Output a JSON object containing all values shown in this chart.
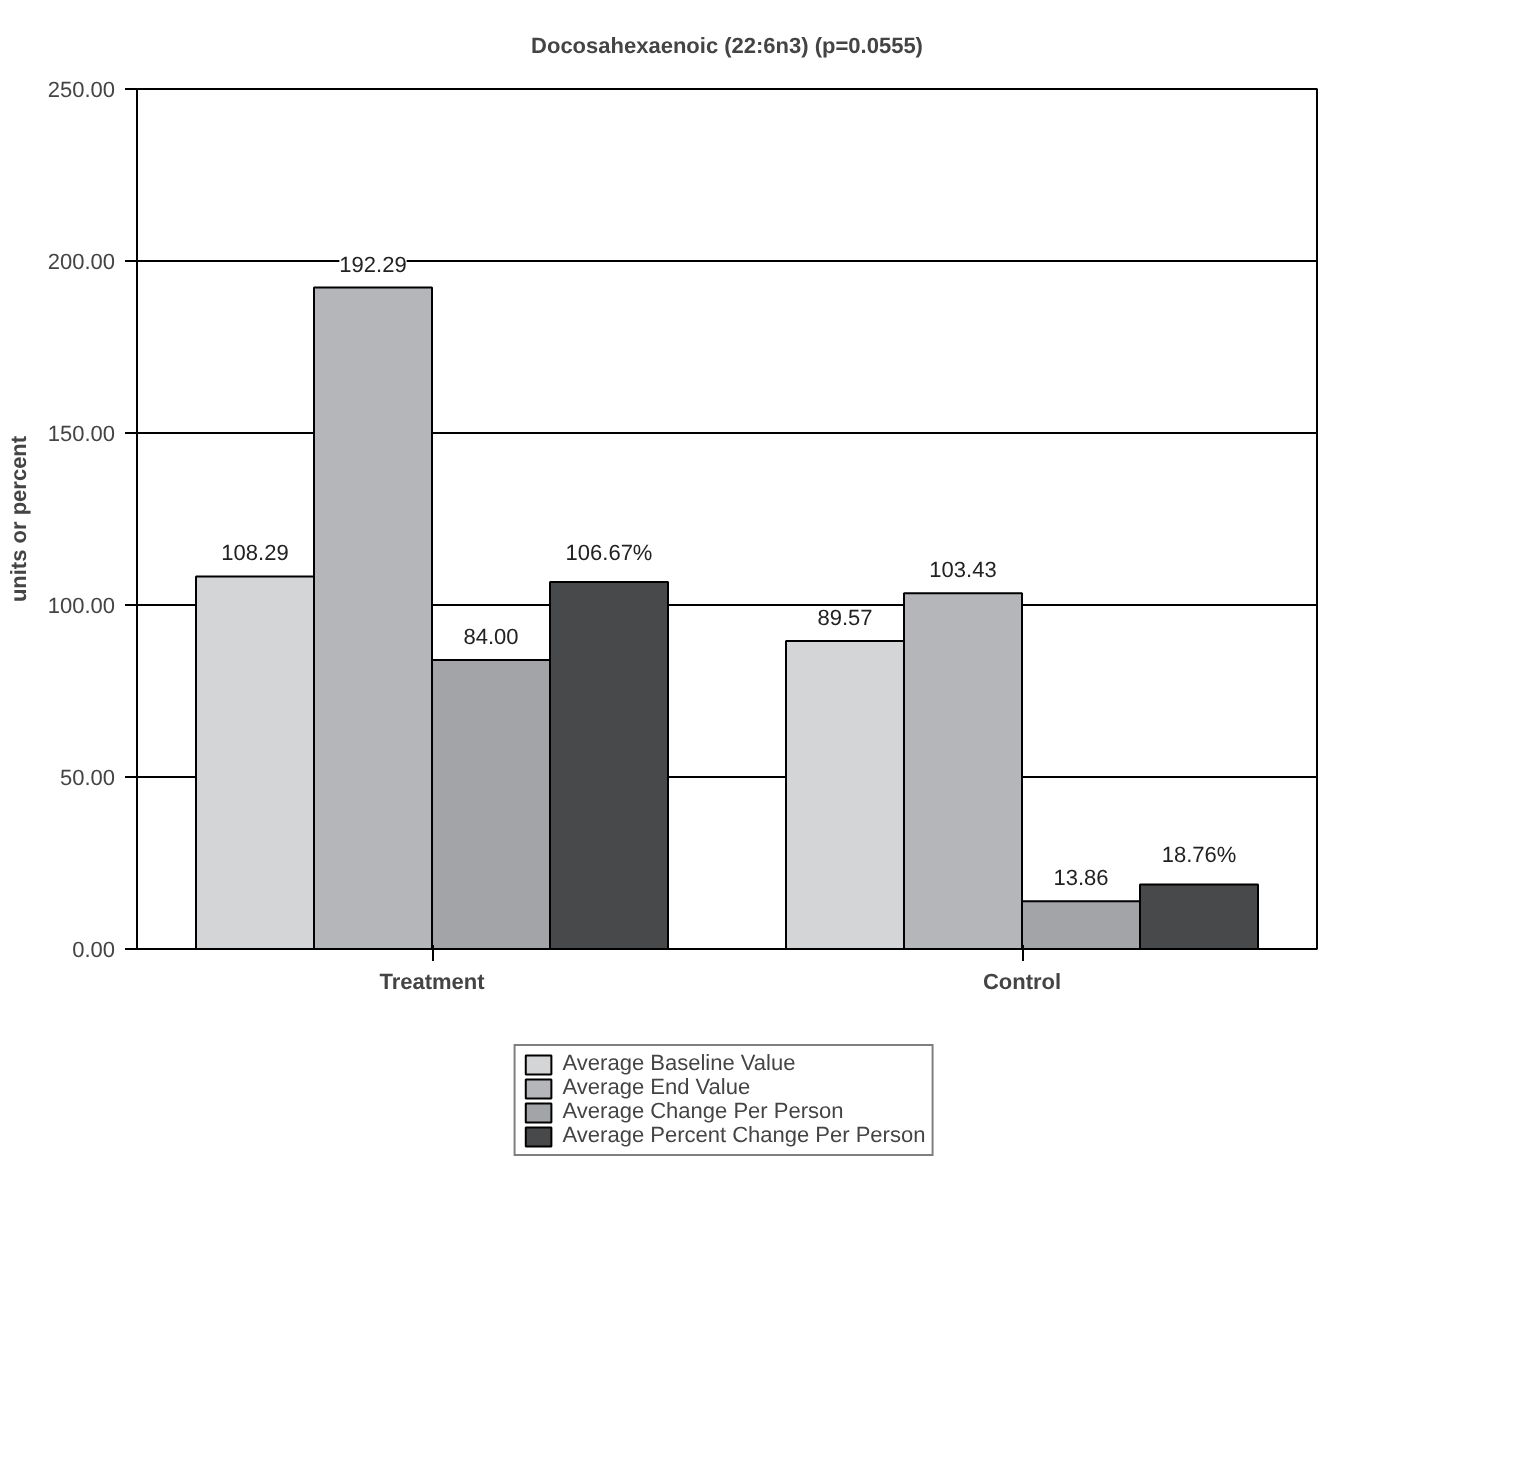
{
  "chart_data": {
    "type": "bar",
    "title": "Docosahexaenoic (22:6n3) (p=0.0555)",
    "ylabel": "units or percent",
    "categories": [
      "Treatment",
      "Control"
    ],
    "series": [
      {
        "name": "Average Baseline Value",
        "color": "#d4d5d7",
        "values": [
          108.29,
          89.57
        ],
        "value_labels": [
          "108.29",
          "89.57"
        ]
      },
      {
        "name": "Average End Value",
        "color": "#b5b6b9",
        "values": [
          192.29,
          103.43
        ],
        "value_labels": [
          "192.29",
          "103.43"
        ]
      },
      {
        "name": "Average Change Per Person",
        "color": "#a3a4a8",
        "values": [
          84.0,
          13.86
        ],
        "value_labels": [
          "84.00",
          "13.86"
        ]
      },
      {
        "name": "Average Percent Change Per Person",
        "color": "#48494b",
        "values": [
          106.67,
          18.76
        ],
        "value_labels": [
          "106.67%",
          "18.76%"
        ]
      }
    ],
    "ylim": [
      0,
      250
    ],
    "yticks": [
      {
        "value": 0,
        "label": "0.00"
      },
      {
        "value": 50,
        "label": "50.00"
      },
      {
        "value": 100,
        "label": "100.00"
      },
      {
        "value": 150,
        "label": "150.00"
      },
      {
        "value": 200,
        "label": "200.00"
      },
      {
        "value": 250,
        "label": "250.00"
      }
    ],
    "grid": "y",
    "legend": "bottom"
  }
}
